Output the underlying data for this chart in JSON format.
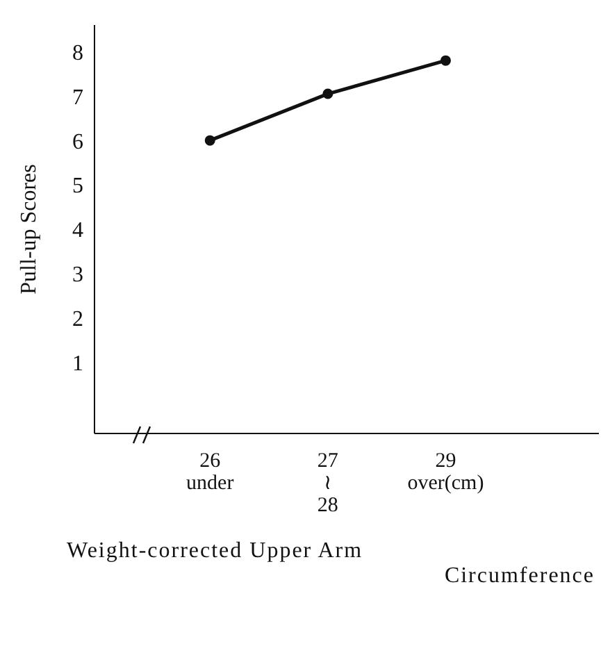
{
  "chart_data": {
    "type": "line",
    "xlabel": "Weight-corrected Upper Arm\nCircumference",
    "ylabel": "Pull-up Scores",
    "categories": [
      "26\nunder",
      "27\n≀\n28",
      "29\nover(cm)"
    ],
    "series": [
      {
        "color": "#111111",
        "values": [
          6.0,
          7.05,
          7.8
        ]
      }
    ],
    "ylim": [
      -0.6,
      8.6
    ],
    "yticks": [
      1,
      2,
      3,
      4,
      5,
      6,
      7,
      8
    ],
    "marker": "circle",
    "line_style": "solid"
  }
}
